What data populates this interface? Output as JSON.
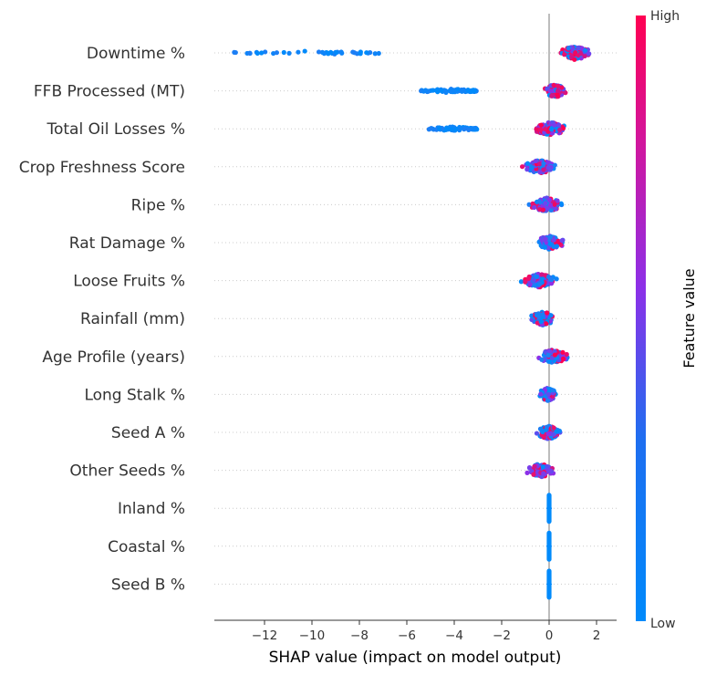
{
  "chart_data": {
    "type": "scatter",
    "subtype": "shap-beeswarm",
    "xlabel": "SHAP value (impact on model output)",
    "xticks": [
      "−12",
      "−10",
      "−8",
      "−6",
      "−4",
      "−2",
      "0",
      "2"
    ],
    "xlim": [
      -14.0,
      2.7
    ],
    "colorbar": {
      "high": "High",
      "low": "Low",
      "title": "Feature value",
      "color_low": "#008afb",
      "color_mid": "#8c30e8",
      "color_high": "#ff0052"
    },
    "features": [
      {
        "name": "Downtime %",
        "segments": [
          {
            "from": -13.3,
            "to": -7.1,
            "count": 40,
            "color": "low"
          },
          {
            "from": 0.3,
            "to": 1.9,
            "count": 110,
            "color": "mix-high"
          }
        ]
      },
      {
        "name": "FFB Processed (MT)",
        "segments": [
          {
            "from": -5.4,
            "to": -3.0,
            "count": 70,
            "color": "low"
          },
          {
            "from": -0.3,
            "to": 0.8,
            "count": 110,
            "color": "mix-high"
          }
        ]
      },
      {
        "name": "Total Oil Losses %",
        "segments": [
          {
            "from": -5.1,
            "to": -3.0,
            "count": 60,
            "color": "low"
          },
          {
            "from": -0.7,
            "to": 0.8,
            "count": 110,
            "color": "mix-high"
          }
        ]
      },
      {
        "name": "Crop Freshness Score",
        "segments": [
          {
            "from": -1.2,
            "to": 0.4,
            "count": 130,
            "color": "mix"
          }
        ]
      },
      {
        "name": "Ripe %",
        "segments": [
          {
            "from": -1.0,
            "to": 0.8,
            "count": 130,
            "color": "mix"
          }
        ]
      },
      {
        "name": "Rat Damage %",
        "segments": [
          {
            "from": -0.7,
            "to": 0.7,
            "count": 130,
            "color": "mix"
          }
        ]
      },
      {
        "name": "Loose Fruits %",
        "segments": [
          {
            "from": -1.3,
            "to": 0.5,
            "count": 130,
            "color": "mix"
          }
        ]
      },
      {
        "name": "Rainfall (mm)",
        "segments": [
          {
            "from": -0.9,
            "to": 0.4,
            "count": 120,
            "color": "mix-low"
          }
        ]
      },
      {
        "name": "Age Profile (years)",
        "segments": [
          {
            "from": -0.6,
            "to": 0.9,
            "count": 120,
            "color": "mix"
          }
        ]
      },
      {
        "name": "Long Stalk %",
        "segments": [
          {
            "from": -0.5,
            "to": 0.4,
            "count": 110,
            "color": "mix-low"
          }
        ]
      },
      {
        "name": "Seed A %",
        "segments": [
          {
            "from": -0.6,
            "to": 0.6,
            "count": 110,
            "color": "mix"
          }
        ]
      },
      {
        "name": "Other Seeds %",
        "segments": [
          {
            "from": -1.1,
            "to": 0.4,
            "count": 90,
            "color": "mix-high"
          }
        ]
      },
      {
        "name": "Inland %",
        "segments": [
          {
            "from": 0.0,
            "to": 0.0,
            "count": 40,
            "color": "low"
          }
        ]
      },
      {
        "name": "Coastal %",
        "segments": [
          {
            "from": 0.0,
            "to": 0.0,
            "count": 40,
            "color": "low"
          }
        ]
      },
      {
        "name": "Seed B %",
        "segments": [
          {
            "from": 0.0,
            "to": 0.0,
            "count": 40,
            "color": "low"
          }
        ]
      }
    ]
  }
}
